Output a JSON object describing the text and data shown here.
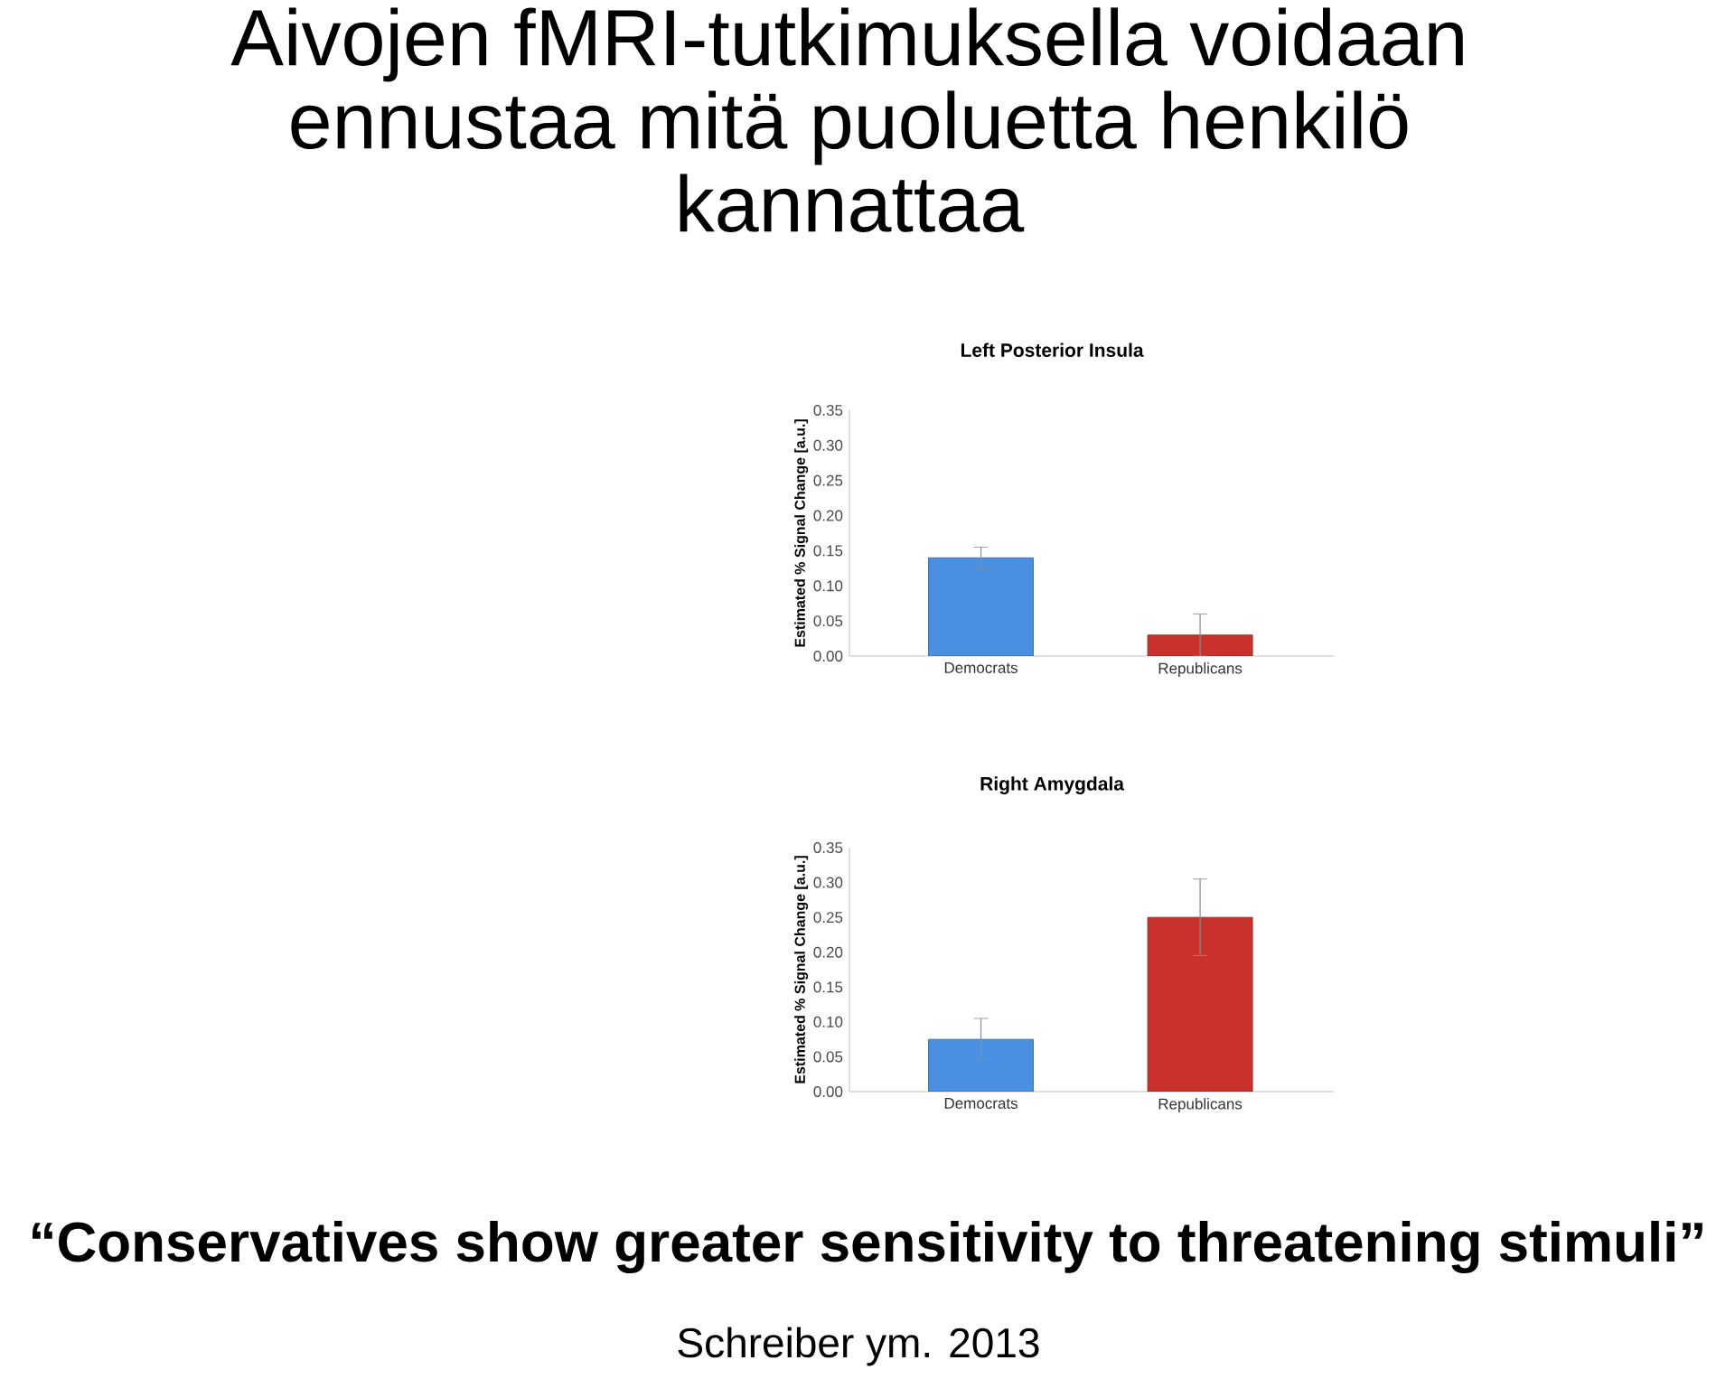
{
  "chart_data": [
    {
      "type": "other",
      "title": "Aivojen fMRI-tutkimuksella voidaan ennustaa mitä puoluetta henkilö kannattaa",
      "annotations": [
        "“Conservatives show greater sensitivity to threatening stimuli”",
        "Schreiber ym. 2013"
      ]
    },
    {
      "type": "bar",
      "title": "Left Posterior Insula",
      "ylabel": "Estimated % Signal Change [a.u.]",
      "categories": [
        "Democrats",
        "Republicans"
      ],
      "values": [
        0.14,
        0.03
      ],
      "errors": [
        0.015,
        0.03
      ],
      "colors": [
        "#4a90e2",
        "#c9312c"
      ],
      "ylim": [
        0,
        0.35
      ],
      "yticks": [
        {
          "value": 0,
          "label": "0.00"
        },
        {
          "value": 0.05,
          "label": "0.05"
        },
        {
          "value": 0.1,
          "label": "0.10"
        },
        {
          "value": 0.15,
          "label": "0.15"
        },
        {
          "value": 0.2,
          "label": "0.20"
        },
        {
          "value": 0.25,
          "label": "0.25"
        },
        {
          "value": 0.3,
          "label": "0.30"
        },
        {
          "value": 0.35,
          "label": "0.35"
        }
      ]
    },
    {
      "type": "bar",
      "title": "Right Amygdala",
      "ylabel": "Estimated % Signal Change [a.u.]",
      "categories": [
        "Democrats",
        "Republicans"
      ],
      "values": [
        0.075,
        0.25
      ],
      "errors": [
        0.03,
        0.055
      ],
      "colors": [
        "#4a90e2",
        "#c9312c"
      ],
      "ylim": [
        0,
        0.35
      ],
      "yticks": [
        {
          "value": 0,
          "label": "0.00"
        },
        {
          "value": 0.05,
          "label": "0.05"
        },
        {
          "value": 0.1,
          "label": "0.10"
        },
        {
          "value": 0.15,
          "label": "0.15"
        },
        {
          "value": 0.2,
          "label": "0.20"
        },
        {
          "value": 0.25,
          "label": "0.25"
        },
        {
          "value": 0.3,
          "label": "0.30"
        },
        {
          "value": 0.35,
          "label": "0.35"
        }
      ]
    }
  ]
}
